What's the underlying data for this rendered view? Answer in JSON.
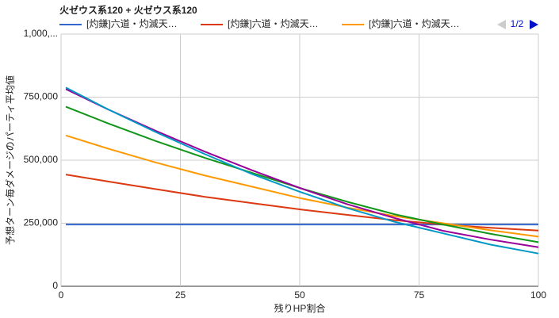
{
  "chart_data": {
    "type": "line",
    "title": "火ゼウス系120 + 火ゼウス系120",
    "x_label": "残りHP割合",
    "y_label": "予想ターン毎ダメージのパーティ平均値",
    "legend": "top",
    "legend_page": "1/2",
    "grid": true,
    "x": [
      1,
      10,
      20,
      30,
      40,
      50,
      60,
      70,
      80,
      90,
      100
    ],
    "xlim": [
      0,
      100
    ],
    "xticks": [
      0,
      25,
      50,
      75,
      100
    ],
    "ylim": [
      0,
      1000000
    ],
    "yticks": [
      0,
      {
        "value": 250000,
        "label": "250,000"
      },
      {
        "value": 500000,
        "label": "500,000"
      },
      {
        "value": 750000,
        "label": "750,000"
      },
      {
        "value": 1000000,
        "label": "1,000,..."
      }
    ],
    "series": [
      {
        "name": "[灼鎌]六道・灼滅天…",
        "color": "#3366cc",
        "values": [
          245000,
          245000,
          245000,
          245000,
          245000,
          245000,
          245000,
          245000,
          245000,
          245000,
          245000
        ]
      },
      {
        "name": "[灼鎌]六道・灼滅天…",
        "color": "#dc3912",
        "values": [
          443000,
          415000,
          385000,
          355000,
          330000,
          305000,
          283000,
          262000,
          245000,
          232000,
          221000
        ]
      },
      {
        "name": "[灼鎌]六道・灼滅天…",
        "color": "#ff9900",
        "values": [
          598000,
          545000,
          490000,
          440000,
          395000,
          350000,
          312000,
          278000,
          250000,
          222000,
          197000
        ]
      },
      {
        "color": "#109618",
        "values": [
          712000,
          645000,
          575000,
          510000,
          450000,
          390000,
          335000,
          285000,
          245000,
          208000,
          175000
        ]
      },
      {
        "color": "#990099",
        "values": [
          782000,
          700000,
          615000,
          535000,
          460000,
          390000,
          325000,
          270000,
          220000,
          185000,
          155000
        ]
      },
      {
        "color": "#0099c6",
        "values": [
          788000,
          700000,
          610000,
          525000,
          445000,
          375000,
          310000,
          255000,
          210000,
          165000,
          130000
        ]
      }
    ]
  }
}
